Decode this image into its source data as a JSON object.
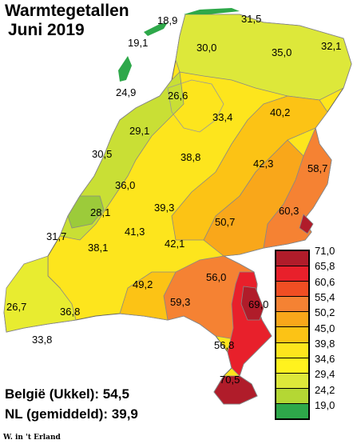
{
  "title": {
    "line1": "Warmtegetallen",
    "line2": "Juni 2019"
  },
  "stats": {
    "belgie": "België (Ukkel): 54,5",
    "nl": "NL (gemiddeld): 39,9"
  },
  "credit": "W. in 't Erland",
  "legend": {
    "labels": [
      "71,0",
      "65,8",
      "60,6",
      "55,4",
      "50,2",
      "45,0",
      "39,8",
      "34,6",
      "29,4",
      "24,2",
      "19,0"
    ],
    "colors": [
      "#b01c2a",
      "#e8202b",
      "#f04e23",
      "#f58233",
      "#f9a71a",
      "#fcc315",
      "#fde51d",
      "#fff21e",
      "#dde83a",
      "#b4d734",
      "#2ea84a"
    ]
  },
  "stations": [
    "18,9",
    "31,5",
    "19,1",
    "30,0",
    "35,0",
    "32,1",
    "24,9",
    "26,6",
    "33,4",
    "40,2",
    "29,1",
    "30,5",
    "38,8",
    "42,3",
    "58,7",
    "36,0",
    "39,3",
    "28,1",
    "60,3",
    "50,7",
    "31,7",
    "41,3",
    "38,1",
    "42,1",
    "49,2",
    "56,0",
    "59,3",
    "69,0",
    "26,7",
    "36,8",
    "56,8",
    "33,8",
    "70,5"
  ]
}
